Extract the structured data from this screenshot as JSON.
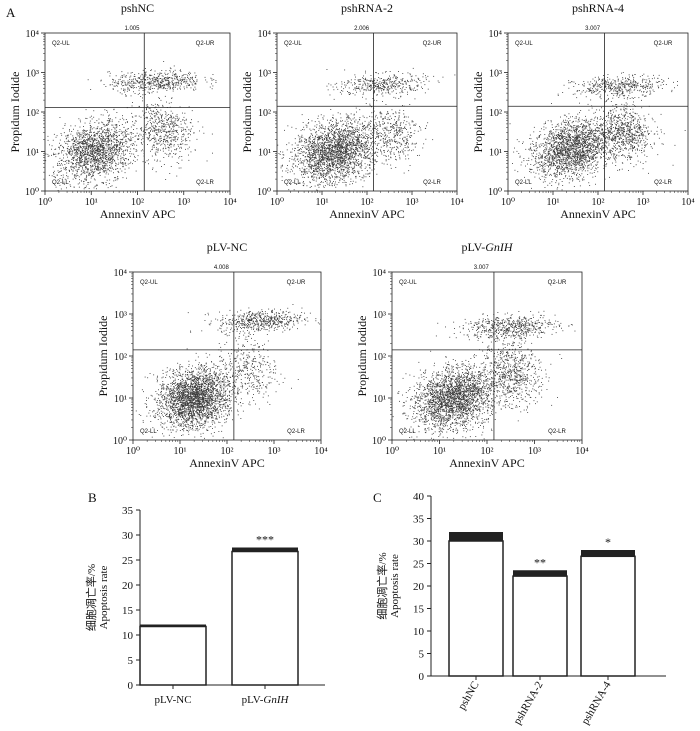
{
  "panel_labels": {
    "a": "A",
    "b": "B",
    "c": "C"
  },
  "chart_data": [
    {
      "type": "scatter",
      "panel": "A",
      "title": "pshNC",
      "xlabel": "AnnexinV APC",
      "ylabel": "Propidum Iodide",
      "x_scale": "log",
      "y_scale": "log",
      "xlim": [
        1,
        10000
      ],
      "ylim": [
        1,
        10000
      ],
      "x_ticks": [
        "10⁰",
        "10¹",
        "10²",
        "10³",
        "10⁴"
      ],
      "y_ticks": [
        "10⁰",
        "10¹",
        "10²",
        "10³",
        "10⁴"
      ],
      "gate": {
        "x": 140,
        "y": 130
      },
      "quadrant_labels": [
        "Q2-UL",
        "Q2-UR",
        "Q2-LL",
        "Q2-LR"
      ],
      "top_value": "1.005",
      "clusters": [
        {
          "cx": 12,
          "cy": 10,
          "sx": 0.45,
          "sy": 0.35,
          "n": 1700,
          "rot": 0.55
        },
        {
          "cx": 350,
          "cy": 35,
          "sx": 0.3,
          "sy": 0.4,
          "n": 550,
          "rot": 0.3
        },
        {
          "cx": 250,
          "cy": 600,
          "sx": 0.5,
          "sy": 0.14,
          "n": 550,
          "rot": 0.05
        }
      ]
    },
    {
      "type": "scatter",
      "panel": "A",
      "title": "pshRNA-2",
      "xlabel": "AnnexinV APC",
      "ylabel": "Propidum Iodide",
      "x_scale": "log",
      "y_scale": "log",
      "xlim": [
        1,
        10000
      ],
      "ylim": [
        1,
        10000
      ],
      "x_ticks": [
        "10⁰",
        "10¹",
        "10²",
        "10³",
        "10⁴"
      ],
      "y_ticks": [
        "10⁰",
        "10¹",
        "10²",
        "10³",
        "10⁴"
      ],
      "gate": {
        "x": 140,
        "y": 140
      },
      "quadrant_labels": [
        "Q2-UL",
        "Q2-UR",
        "Q2-LL",
        "Q2-LR"
      ],
      "top_value": "2.006",
      "clusters": [
        {
          "cx": 20,
          "cy": 10,
          "sx": 0.5,
          "sy": 0.36,
          "n": 2300,
          "rot": 0.5
        },
        {
          "cx": 400,
          "cy": 30,
          "sx": 0.28,
          "sy": 0.35,
          "n": 350,
          "rot": 0.3
        },
        {
          "cx": 200,
          "cy": 500,
          "sx": 0.5,
          "sy": 0.14,
          "n": 400,
          "rot": 0.05
        }
      ]
    },
    {
      "type": "scatter",
      "panel": "A",
      "title": "pshRNA-4",
      "xlabel": "AnnexinV APC",
      "ylabel": "Propidum Iodide",
      "x_scale": "log",
      "y_scale": "log",
      "xlim": [
        1,
        10000
      ],
      "ylim": [
        1,
        10000
      ],
      "x_ticks": [
        "10⁰",
        "10¹",
        "10²",
        "10³",
        "10⁴"
      ],
      "y_ticks": [
        "10⁰",
        "10¹",
        "10²",
        "10³",
        "10⁴"
      ],
      "gate": {
        "x": 140,
        "y": 140
      },
      "quadrant_labels": [
        "Q2-UL",
        "Q2-UR",
        "Q2-LL",
        "Q2-LR"
      ],
      "top_value": "3.007",
      "clusters": [
        {
          "cx": 25,
          "cy": 12,
          "sx": 0.45,
          "sy": 0.34,
          "n": 2000,
          "rot": 0.5
        },
        {
          "cx": 400,
          "cy": 30,
          "sx": 0.3,
          "sy": 0.36,
          "n": 700,
          "rot": 0.3
        },
        {
          "cx": 300,
          "cy": 450,
          "sx": 0.5,
          "sy": 0.13,
          "n": 450,
          "rot": 0.05
        }
      ]
    },
    {
      "type": "scatter",
      "panel": "A",
      "title": "pLV-NC",
      "xlabel": "AnnexinV APC",
      "ylabel": "Propidum Iodide",
      "x_scale": "log",
      "y_scale": "log",
      "xlim": [
        1,
        10000
      ],
      "ylim": [
        1,
        10000
      ],
      "x_ticks": [
        "10⁰",
        "10¹",
        "10²",
        "10³",
        "10⁴"
      ],
      "y_ticks": [
        "10⁰",
        "10¹",
        "10²",
        "10³",
        "10⁴"
      ],
      "gate": {
        "x": 140,
        "y": 140
      },
      "quadrant_labels": [
        "Q2-UL",
        "Q2-UR",
        "Q2-LL",
        "Q2-LR"
      ],
      "top_value": "4.008",
      "clusters": [
        {
          "cx": 20,
          "cy": 10,
          "sx": 0.4,
          "sy": 0.33,
          "n": 2600,
          "rot": 0.55
        },
        {
          "cx": 300,
          "cy": 50,
          "sx": 0.3,
          "sy": 0.4,
          "n": 350,
          "rot": 0.3
        },
        {
          "cx": 500,
          "cy": 700,
          "sx": 0.45,
          "sy": 0.13,
          "n": 550,
          "rot": 0.05
        }
      ]
    },
    {
      "type": "scatter",
      "panel": "A",
      "title": "pLV-GnIH",
      "title_parts": [
        "pLV-",
        "GnIH"
      ],
      "xlabel": "AnnexinV APC",
      "ylabel": "Propidum Iodide",
      "x_scale": "log",
      "y_scale": "log",
      "xlim": [
        1,
        10000
      ],
      "ylim": [
        1,
        10000
      ],
      "x_ticks": [
        "10⁰",
        "10¹",
        "10²",
        "10³",
        "10⁴"
      ],
      "y_ticks": [
        "10⁰",
        "10¹",
        "10²",
        "10³",
        "10⁴"
      ],
      "gate": {
        "x": 140,
        "y": 140
      },
      "quadrant_labels": [
        "Q2-UL",
        "Q2-UR",
        "Q2-LL",
        "Q2-LR"
      ],
      "top_value": "3.007",
      "clusters": [
        {
          "cx": 20,
          "cy": 10,
          "sx": 0.45,
          "sy": 0.34,
          "n": 2400,
          "rot": 0.55
        },
        {
          "cx": 350,
          "cy": 40,
          "sx": 0.3,
          "sy": 0.4,
          "n": 650,
          "rot": 0.3
        },
        {
          "cx": 300,
          "cy": 500,
          "sx": 0.5,
          "sy": 0.14,
          "n": 550,
          "rot": 0.05
        }
      ]
    },
    {
      "type": "bar",
      "panel": "B",
      "categories": [
        "pLV-NC",
        "pLV-GnIH"
      ],
      "category_parts": [
        [
          "pLV-NC",
          ""
        ],
        [
          "pLV-",
          "GnIH"
        ]
      ],
      "values": [
        11.7,
        26.7
      ],
      "errors": [
        0.4,
        0.8
      ],
      "significance": [
        "",
        "***"
      ],
      "ylabel_cn": "细胞凋亡率/%",
      "ylabel": "Apoptosis rate",
      "ylim": [
        0,
        35
      ],
      "yticks": [
        0,
        5,
        10,
        15,
        20,
        25,
        30,
        35
      ]
    },
    {
      "type": "bar",
      "panel": "C",
      "categories": [
        "pshNC",
        "pshRNA-2",
        "pshRNA-4"
      ],
      "values": [
        30.0,
        22.2,
        26.6
      ],
      "errors": [
        2.0,
        1.3,
        1.4
      ],
      "significance": [
        "",
        "**",
        "*"
      ],
      "ylabel_cn": "细胞凋亡率/%",
      "ylabel": "Apoptosis rate",
      "ylim": [
        0,
        40
      ],
      "yticks": [
        0,
        5,
        10,
        15,
        20,
        25,
        30,
        35,
        40
      ]
    }
  ]
}
